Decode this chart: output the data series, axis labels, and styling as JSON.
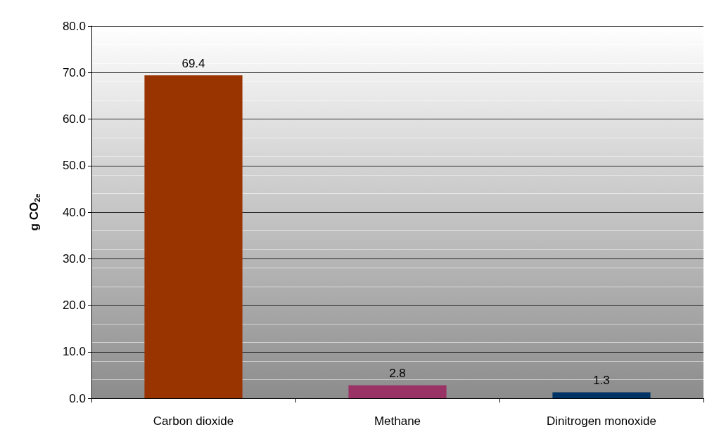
{
  "chart_data": {
    "type": "bar",
    "ylabel": "g CO$_{2e}$",
    "categories": [
      "Carbon dioxide",
      "Methane",
      "Dinitrogen monoxide"
    ],
    "values": [
      69.4,
      2.8,
      1.3
    ],
    "colors": [
      "#993300",
      "#993366",
      "#003366"
    ],
    "ylim": [
      0,
      80
    ],
    "yticks": [
      {
        "value": 0,
        "label": "0.0"
      },
      {
        "value": 10,
        "label": "10.0"
      },
      {
        "value": 20,
        "label": "20.0"
      },
      {
        "value": 30,
        "label": "30.0"
      },
      {
        "value": 40,
        "label": "40.0"
      },
      {
        "value": 50,
        "label": "50.0"
      },
      {
        "value": 60,
        "label": "60.0"
      },
      {
        "value": 70,
        "label": "70.0"
      },
      {
        "value": 80,
        "label": "80.0"
      }
    ],
    "grid": "y",
    "data_labels": true
  }
}
